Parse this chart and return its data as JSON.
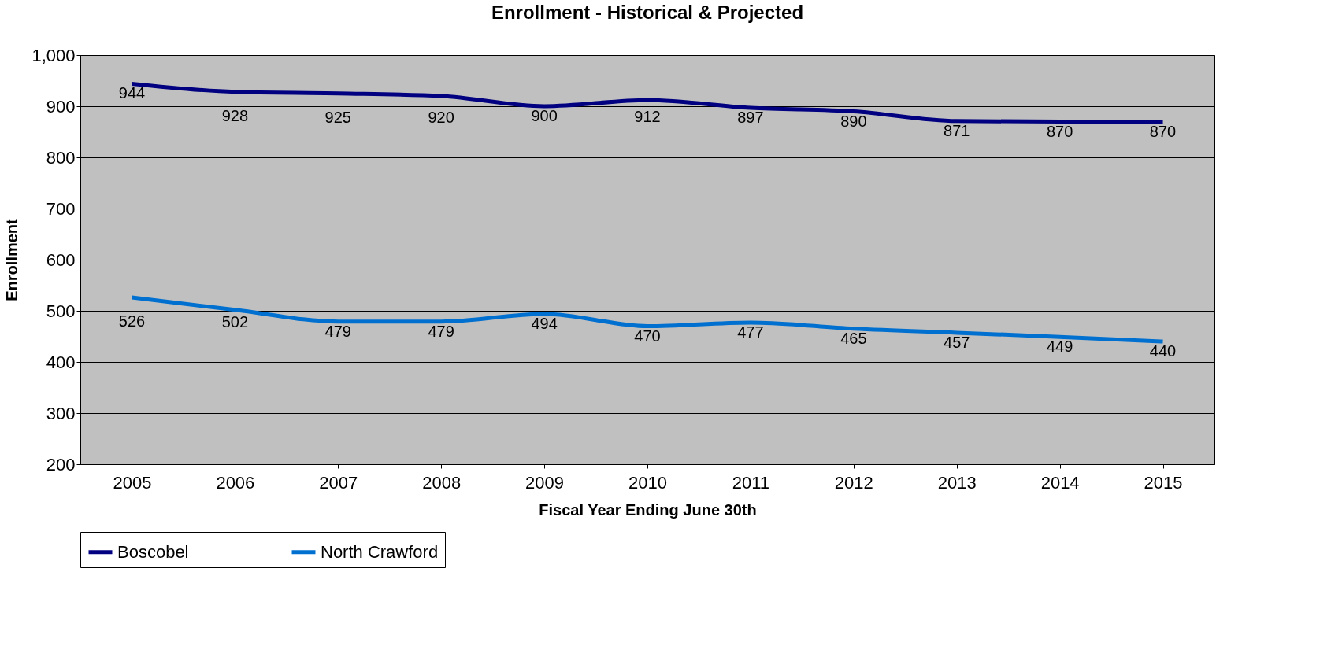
{
  "chart_data": {
    "type": "line",
    "title": "Enrollment - Historical & Projected",
    "xlabel": "Fiscal Year Ending June 30th",
    "ylabel": "Enrollment",
    "categories": [
      "2005",
      "2006",
      "2007",
      "2008",
      "2009",
      "2010",
      "2011",
      "2012",
      "2013",
      "2014",
      "2015"
    ],
    "series": [
      {
        "name": "Boscobel",
        "color": "#000080",
        "values": [
          944,
          928,
          925,
          920,
          900,
          912,
          897,
          890,
          871,
          870,
          870
        ]
      },
      {
        "name": "North Crawford",
        "color": "#0070d0",
        "values": [
          526,
          502,
          479,
          479,
          494,
          470,
          477,
          465,
          457,
          449,
          440
        ]
      }
    ],
    "ylim": [
      200,
      1000
    ],
    "yticks": [
      200,
      300,
      400,
      500,
      600,
      700,
      800,
      900,
      {
        "value": 1000,
        "label": "1,000"
      }
    ],
    "grid": "y",
    "legend": "bottom",
    "data_labels": true,
    "marker": "none",
    "line_style": "solid"
  }
}
